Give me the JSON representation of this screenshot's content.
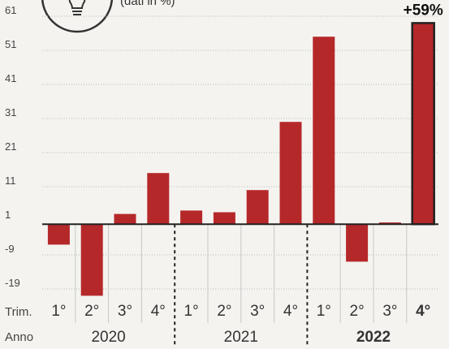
{
  "chart_data": {
    "type": "bar",
    "subtitle": "(dati in %)",
    "y_ticks": [
      61,
      51,
      41,
      31,
      21,
      11,
      1,
      -9,
      -19
    ],
    "ylim": [
      -22,
      62
    ],
    "baseline": 0,
    "grid": true,
    "row_labels": {
      "quarter": "Trim.",
      "year": "Anno"
    },
    "categories": [
      "1°",
      "2°",
      "3°",
      "4°",
      "1°",
      "2°",
      "3°",
      "4°",
      "1°",
      "2°",
      "3°",
      "4°"
    ],
    "years": [
      {
        "label": "2020",
        "bold": false,
        "span": [
          0,
          3
        ]
      },
      {
        "label": "2021",
        "bold": false,
        "span": [
          4,
          7
        ]
      },
      {
        "label": "2022",
        "bold": true,
        "span": [
          8,
          11
        ]
      }
    ],
    "values": [
      -6,
      -21,
      3,
      15,
      4,
      3.5,
      10,
      30,
      55,
      -11,
      0.5,
      59
    ],
    "highlight_index": 11,
    "annotation": {
      "text": "+59%",
      "index": 11
    },
    "colors": {
      "bar": "#b5282a",
      "highlight_border": "#222222"
    }
  }
}
